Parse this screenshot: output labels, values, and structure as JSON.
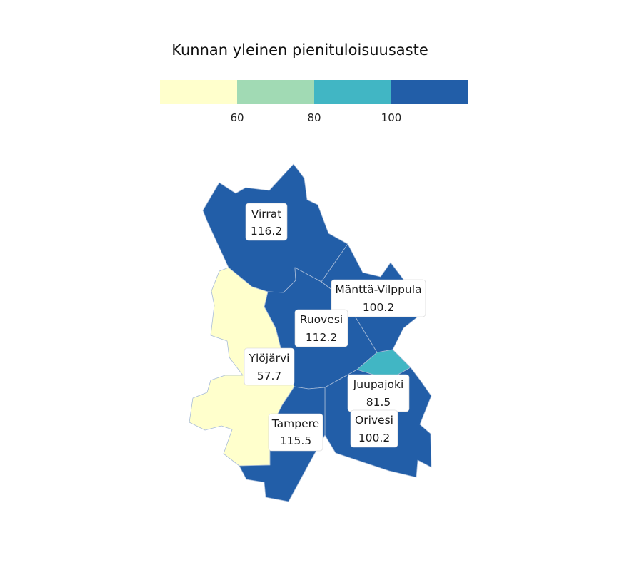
{
  "title": "Kunnan yleinen pienituloisuusaste",
  "legend": {
    "colors": [
      "#ffffcc",
      "#a1dab4",
      "#41b6c4",
      "#225ea8"
    ],
    "breaks": [
      60,
      80,
      100
    ],
    "tick_labels": [
      "60",
      "80",
      "100"
    ]
  },
  "municipalities": [
    {
      "key": "virrat",
      "name": "Virrat",
      "value": 116.2,
      "value_text": "116.2",
      "color": "#225ea8"
    },
    {
      "key": "mantta-vilppula",
      "name": "Mänttä-Vilppula",
      "value": 100.2,
      "value_text": "100.2",
      "color": "#225ea8"
    },
    {
      "key": "ruovesi",
      "name": "Ruovesi",
      "value": 112.2,
      "value_text": "112.2",
      "color": "#225ea8"
    },
    {
      "key": "ylojarvi",
      "name": "Ylöjärvi",
      "value": 57.7,
      "value_text": "57.7",
      "color": "#ffffcc"
    },
    {
      "key": "juupajoki",
      "name": "Juupajoki",
      "value": 81.5,
      "value_text": "81.5",
      "color": "#41b6c4"
    },
    {
      "key": "orivesi",
      "name": "Orivesi",
      "value": 100.2,
      "value_text": "100.2",
      "color": "#225ea8"
    },
    {
      "key": "tampere",
      "name": "Tampere",
      "value": 115.5,
      "value_text": "115.5",
      "color": "#225ea8"
    }
  ]
}
